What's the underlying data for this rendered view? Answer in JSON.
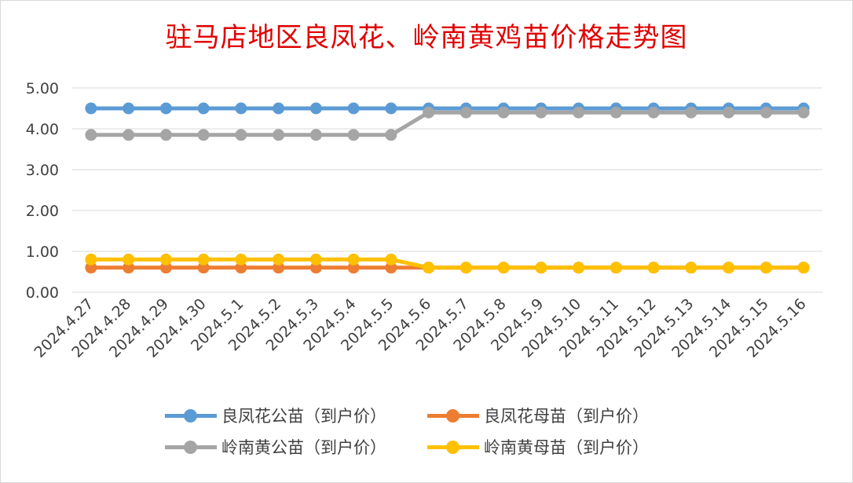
{
  "chart_data": {
    "type": "line",
    "title": "驻马店地区良凤花、岭南黄鸡苗价格走势图",
    "xlabel": "",
    "ylabel": "",
    "ylim": [
      0,
      5
    ],
    "yticks": [
      "0.00",
      "1.00",
      "2.00",
      "3.00",
      "4.00",
      "5.00"
    ],
    "grid": true,
    "legend_position": "bottom",
    "categories": [
      "2024.4.27",
      "2024.4.28",
      "2024.4.29",
      "2024.4.30",
      "2024.5.1",
      "2024.5.2",
      "2024.5.3",
      "2024.5.4",
      "2024.5.5",
      "2024.5.6",
      "2024.5.7",
      "2024.5.8",
      "2024.5.9",
      "2024.5.10",
      "2024.5.11",
      "2024.5.12",
      "2024.5.13",
      "2024.5.14",
      "2024.5.15",
      "2024.5.16"
    ],
    "series": [
      {
        "name": "良凤花公苗（到户价）",
        "color": "#5b9bd5",
        "values": [
          4.5,
          4.5,
          4.5,
          4.5,
          4.5,
          4.5,
          4.5,
          4.5,
          4.5,
          4.5,
          4.5,
          4.5,
          4.5,
          4.5,
          4.5,
          4.5,
          4.5,
          4.5,
          4.5,
          4.5
        ]
      },
      {
        "name": "良凤花母苗（到户价）",
        "color": "#ed7d31",
        "values": [
          0.6,
          0.6,
          0.6,
          0.6,
          0.6,
          0.6,
          0.6,
          0.6,
          0.6,
          0.6,
          0.6,
          0.6,
          0.6,
          0.6,
          0.6,
          0.6,
          0.6,
          0.6,
          0.6,
          0.6
        ]
      },
      {
        "name": "岭南黄公苗（到户价）",
        "color": "#a5a5a5",
        "values": [
          3.85,
          3.85,
          3.85,
          3.85,
          3.85,
          3.85,
          3.85,
          3.85,
          3.85,
          4.4,
          4.4,
          4.4,
          4.4,
          4.4,
          4.4,
          4.4,
          4.4,
          4.4,
          4.4,
          4.4
        ]
      },
      {
        "name": "岭南黄母苗（到户价）",
        "color": "#ffc000",
        "values": [
          0.8,
          0.8,
          0.8,
          0.8,
          0.8,
          0.8,
          0.8,
          0.8,
          0.8,
          0.6,
          0.6,
          0.6,
          0.6,
          0.6,
          0.6,
          0.6,
          0.6,
          0.6,
          0.6,
          0.6
        ]
      }
    ]
  }
}
